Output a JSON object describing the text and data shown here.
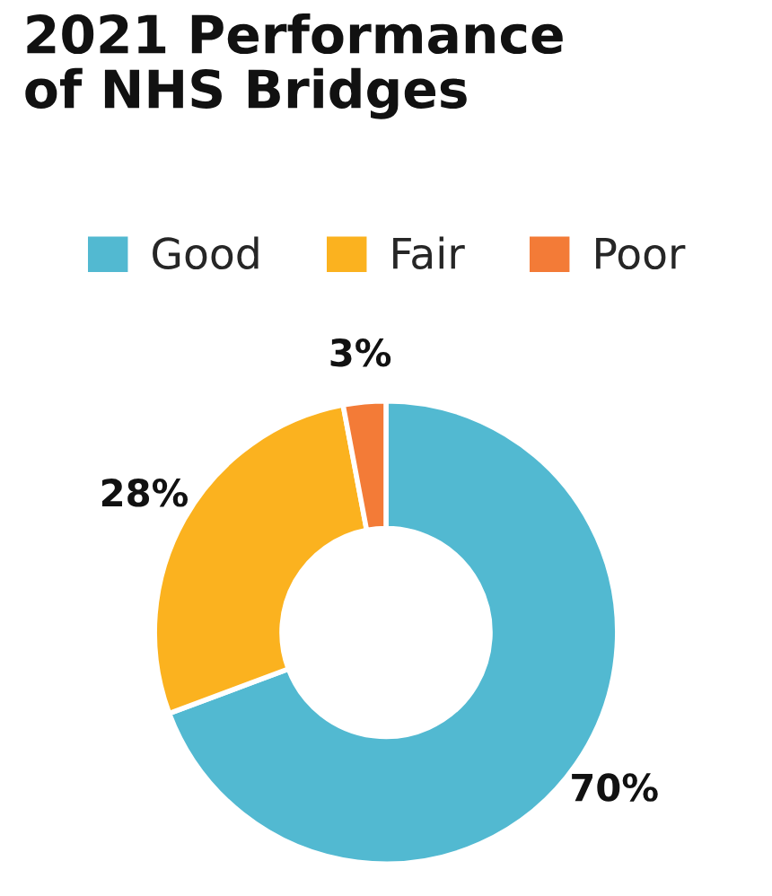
{
  "chart_data": {
    "type": "donut",
    "title": "2021 Performance\nof NHS Bridges",
    "categories": [
      "Good",
      "Fair",
      "Poor"
    ],
    "values": [
      70,
      28,
      3
    ],
    "colors": [
      "#52b9d1",
      "#fbb21f",
      "#f37b37"
    ],
    "value_labels": [
      "70%",
      "28%",
      "3%"
    ],
    "legend": "top"
  }
}
